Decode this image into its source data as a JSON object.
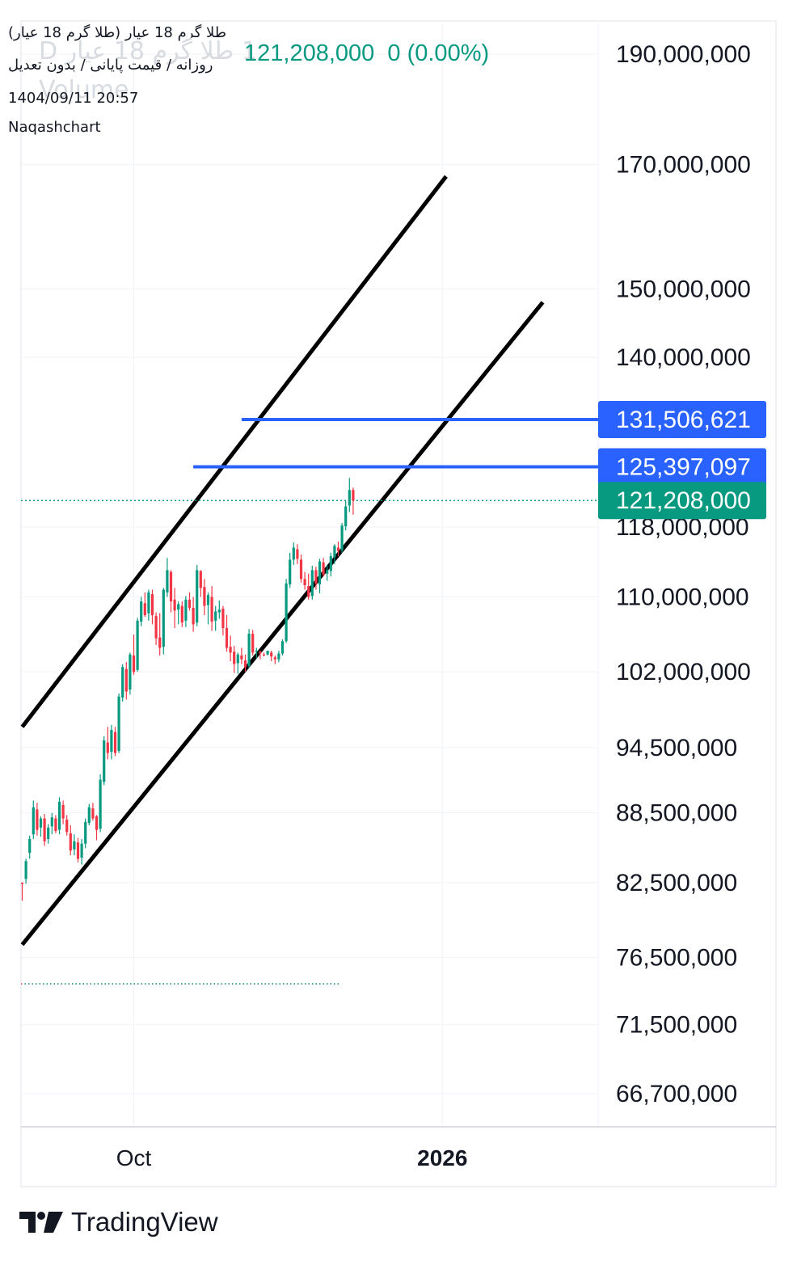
{
  "header": {
    "title": "طلا گرم 18 عیار (طلا گرم 18 عیار)",
    "subtitle": "روزانه / قیمت پایانی / بدون تعدیل",
    "datetime": "1404/09/11 20:57",
    "author": "Naqashchart",
    "watermark_line1": "1 طلا گرم 18 عیار",
    "watermark_suffix": "D",
    "watermark_line2": "Volume",
    "last_price": "121,208,000",
    "change": "0 (0.00%)"
  },
  "footer": {
    "brand": "TradingView"
  },
  "colors": {
    "up": "#089981",
    "down": "#f23645",
    "price_badge": "#089981",
    "level_line": "#2962ff",
    "channel": "#000000",
    "grid": "#f0f3fa"
  },
  "chart_data": {
    "type": "candlestick",
    "y_scale": "log",
    "y_ticks": [
      {
        "label": "190,000,000",
        "value": 190000000
      },
      {
        "label": "170,000,000",
        "value": 170000000
      },
      {
        "label": "150,000,000",
        "value": 150000000
      },
      {
        "label": "140,000,000",
        "value": 140000000
      },
      {
        "label": "118,000,000",
        "value": 118000000
      },
      {
        "label": "110,000,000",
        "value": 110000000
      },
      {
        "label": "102,000,000",
        "value": 102000000
      },
      {
        "label": "94,500,000",
        "value": 94500000
      },
      {
        "label": "88,500,000",
        "value": 88500000
      },
      {
        "label": "82,500,000",
        "value": 82500000
      },
      {
        "label": "76,500,000",
        "value": 76500000
      },
      {
        "label": "71,500,000",
        "value": 71500000
      },
      {
        "label": "66,700,000",
        "value": 66700000
      }
    ],
    "x_ticks": [
      {
        "label": "Oct",
        "bar": 30,
        "bold": false
      },
      {
        "label": "2026",
        "bar": 113,
        "bold": true
      }
    ],
    "price_levels": [
      {
        "label": "131,506,621",
        "value": 131506621,
        "from_bar": 59
      },
      {
        "label": "125,397,097",
        "value": 125397097,
        "from_bar": 46
      }
    ],
    "last_price": {
      "label": "121,208,000",
      "value": 121208000
    },
    "prev_close_line": {
      "value": 74500000
    },
    "channel_lines": [
      {
        "from": {
          "bar": 0,
          "value": 96500000
        },
        "to": {
          "bar": 114,
          "value": 168000000
        }
      },
      {
        "from": {
          "bar": 0,
          "value": 77500000
        },
        "to": {
          "bar": 140,
          "value": 148000000
        }
      }
    ],
    "candles": [
      [
        82500000,
        82500000,
        81000000,
        82400000
      ],
      [
        82800000,
        84500000,
        82400000,
        84300000
      ],
      [
        85000000,
        86500000,
        84500000,
        86200000
      ],
      [
        86600000,
        89600000,
        86200000,
        89000000
      ],
      [
        88800000,
        89400000,
        86500000,
        87000000
      ],
      [
        87200000,
        88200000,
        86400000,
        88000000
      ],
      [
        88000000,
        88400000,
        85600000,
        86000000
      ],
      [
        86200000,
        87500000,
        85800000,
        87200000
      ],
      [
        87300000,
        88500000,
        86600000,
        88100000
      ],
      [
        88000000,
        88300000,
        86700000,
        86900000
      ],
      [
        87000000,
        89900000,
        86600000,
        89500000
      ],
      [
        89200000,
        89600000,
        87500000,
        88000000
      ],
      [
        87900000,
        88300000,
        86500000,
        86800000
      ],
      [
        86700000,
        87400000,
        84800000,
        85200000
      ],
      [
        85300000,
        86600000,
        84800000,
        86000000
      ],
      [
        85900000,
        86300000,
        84200000,
        84500000
      ],
      [
        84600000,
        86200000,
        84000000,
        85800000
      ],
      [
        85800000,
        88000000,
        85400000,
        87700000
      ],
      [
        87600000,
        89300000,
        87400000,
        89000000
      ],
      [
        88900000,
        89400000,
        87800000,
        88000000
      ],
      [
        88200000,
        88300000,
        86100000,
        87000000
      ],
      [
        87100000,
        92000000,
        86800000,
        91500000
      ],
      [
        91300000,
        95600000,
        91000000,
        95200000
      ],
      [
        95000000,
        96500000,
        93400000,
        94000000
      ],
      [
        94100000,
        96700000,
        93400000,
        96200000
      ],
      [
        96000000,
        96500000,
        93700000,
        94000000
      ],
      [
        94200000,
        99800000,
        94000000,
        99500000
      ],
      [
        99400000,
        102800000,
        99000000,
        102500000
      ],
      [
        102300000,
        103000000,
        99200000,
        100000000
      ],
      [
        100200000,
        104000000,
        99700000,
        103800000
      ],
      [
        103700000,
        105900000,
        101700000,
        102000000
      ],
      [
        102200000,
        107700000,
        102000000,
        107400000
      ],
      [
        107300000,
        110000000,
        106800000,
        109500000
      ],
      [
        109300000,
        110500000,
        107800000,
        108000000
      ],
      [
        108200000,
        110800000,
        107400000,
        110500000
      ],
      [
        110300000,
        110800000,
        107000000,
        108000000
      ],
      [
        107900000,
        108300000,
        104800000,
        105500000
      ],
      [
        105600000,
        108200000,
        103700000,
        104500000
      ],
      [
        104600000,
        111000000,
        103800000,
        110800000
      ],
      [
        110500000,
        114400000,
        110000000,
        113000000
      ],
      [
        112800000,
        113000000,
        108300000,
        109500000
      ],
      [
        109700000,
        111000000,
        106600000,
        108500000
      ],
      [
        108600000,
        109500000,
        107000000,
        109200000
      ],
      [
        109000000,
        109500000,
        106700000,
        107200000
      ],
      [
        107400000,
        110100000,
        106700000,
        109700000
      ],
      [
        109700000,
        110500000,
        108500000,
        108800000
      ],
      [
        108800000,
        110000000,
        106200000,
        107000000
      ],
      [
        107200000,
        113600000,
        106800000,
        113000000
      ],
      [
        112900000,
        113000000,
        110000000,
        111000000
      ],
      [
        111100000,
        112000000,
        108000000,
        109000000
      ],
      [
        109100000,
        110500000,
        107000000,
        110200000
      ],
      [
        110000000,
        111200000,
        106300000,
        107300000
      ],
      [
        107400000,
        109000000,
        106300000,
        108400000
      ],
      [
        108300000,
        109600000,
        107600000,
        108600000
      ],
      [
        108700000,
        109000000,
        105800000,
        106600000
      ],
      [
        106600000,
        108000000,
        104100000,
        104500000
      ],
      [
        104600000,
        105800000,
        103100000,
        104000000
      ],
      [
        104100000,
        104700000,
        101900000,
        102800000
      ],
      [
        102900000,
        104000000,
        101800000,
        103800000
      ],
      [
        103700000,
        104500000,
        102800000,
        103300000
      ],
      [
        103200000,
        103800000,
        102000000,
        102500000
      ],
      [
        102600000,
        106500000,
        102400000,
        106000000
      ],
      [
        106000000,
        106400000,
        103700000,
        104000000
      ],
      [
        104200000,
        104500000,
        103400000,
        104200000
      ],
      [
        104100000,
        104200000,
        103300000,
        103900000
      ],
      [
        103800000,
        104000000,
        103600000,
        103700000
      ],
      [
        103800000,
        104200000,
        103700000,
        104200000
      ],
      [
        104000000,
        104200000,
        103100000,
        103600000
      ],
      [
        103500000,
        103700000,
        102800000,
        103300000
      ],
      [
        103300000,
        104200000,
        103000000,
        103900000
      ],
      [
        103900000,
        105400000,
        103700000,
        105200000
      ],
      [
        105200000,
        112000000,
        105000000,
        111500000
      ],
      [
        111400000,
        115000000,
        111000000,
        114200000
      ],
      [
        114200000,
        116200000,
        113600000,
        115600000
      ],
      [
        115400000,
        116000000,
        113700000,
        114300000
      ],
      [
        114200000,
        114800000,
        111600000,
        112000000
      ],
      [
        112000000,
        112800000,
        110800000,
        111300000
      ],
      [
        111200000,
        112600000,
        109700000,
        110000000
      ],
      [
        110100000,
        113500000,
        109700000,
        113000000
      ],
      [
        113000000,
        113400000,
        110800000,
        111500000
      ],
      [
        111400000,
        114300000,
        110400000,
        114000000
      ],
      [
        113900000,
        114400000,
        112300000,
        112500000
      ],
      [
        112600000,
        113600000,
        111800000,
        113000000
      ],
      [
        112900000,
        115000000,
        112300000,
        114600000
      ],
      [
        114500000,
        116000000,
        113700000,
        115800000
      ],
      [
        115600000,
        116300000,
        114600000,
        115200000
      ],
      [
        115300000,
        118500000,
        115000000,
        118200000
      ],
      [
        118100000,
        121200000,
        117600000,
        120500000
      ],
      [
        120600000,
        124000000,
        119800000,
        122500000
      ],
      [
        122500000,
        122800000,
        119500000,
        121208000
      ]
    ]
  }
}
